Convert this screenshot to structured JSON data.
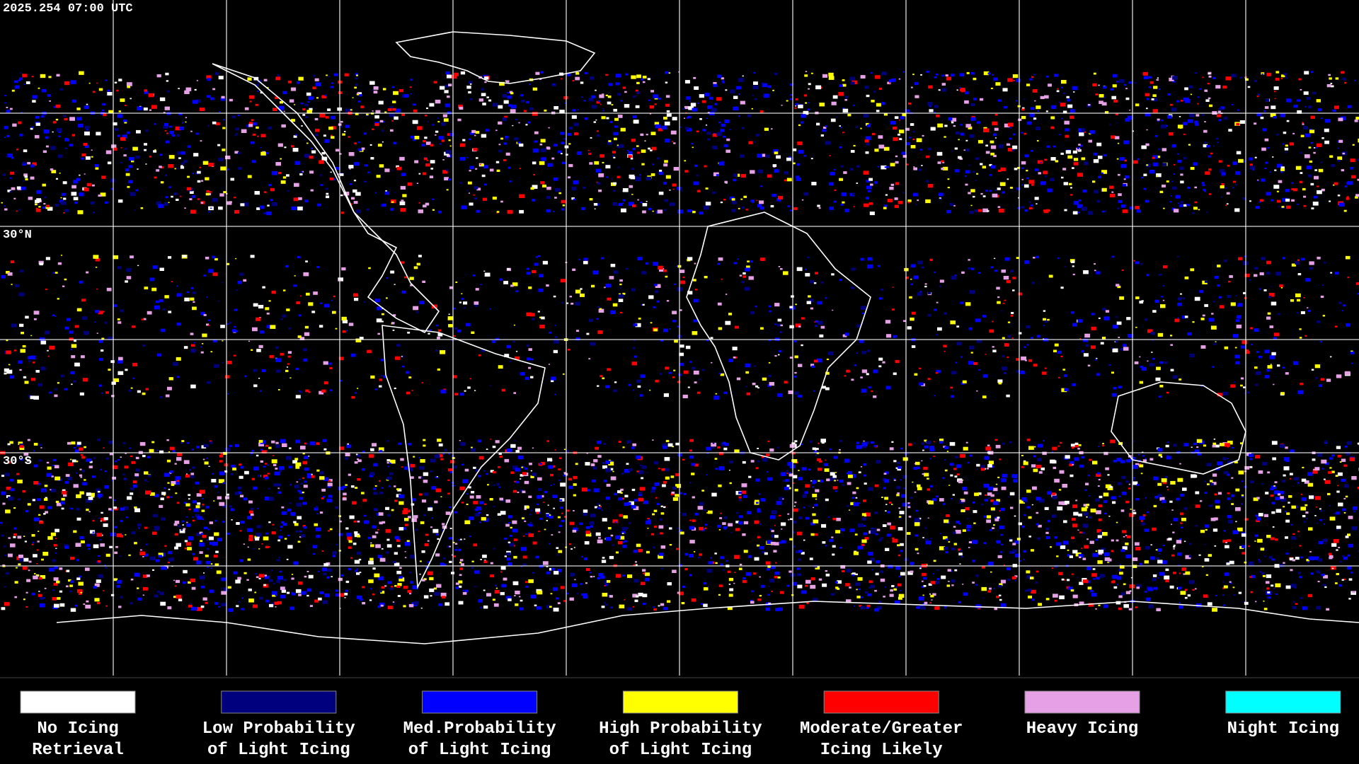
{
  "header": {
    "timestamp": "2025.254 07:00 UTC"
  },
  "map": {
    "lat_labels": [
      {
        "text": "30°N",
        "lat": 30
      },
      {
        "text": "30°S",
        "lat": -30
      }
    ]
  },
  "legend": {
    "items": [
      {
        "lines": [
          "No Icing",
          "Retrieval"
        ],
        "color": "#ffffff"
      },
      {
        "lines": [
          "Low Probability",
          "of Light Icing"
        ],
        "color": "#00007f"
      },
      {
        "lines": [
          "Med.Probability",
          "of Light Icing"
        ],
        "color": "#0000ff"
      },
      {
        "lines": [
          "High Probability",
          "of Light Icing"
        ],
        "color": "#ffff00"
      },
      {
        "lines": [
          "Moderate/Greater",
          "Icing Likely"
        ],
        "color": "#ff0000"
      },
      {
        "lines": [
          "Heavy Icing"
        ],
        "color": "#e6a0e6"
      },
      {
        "lines": [
          "Night Icing"
        ],
        "color": "#00ffff"
      }
    ]
  }
}
